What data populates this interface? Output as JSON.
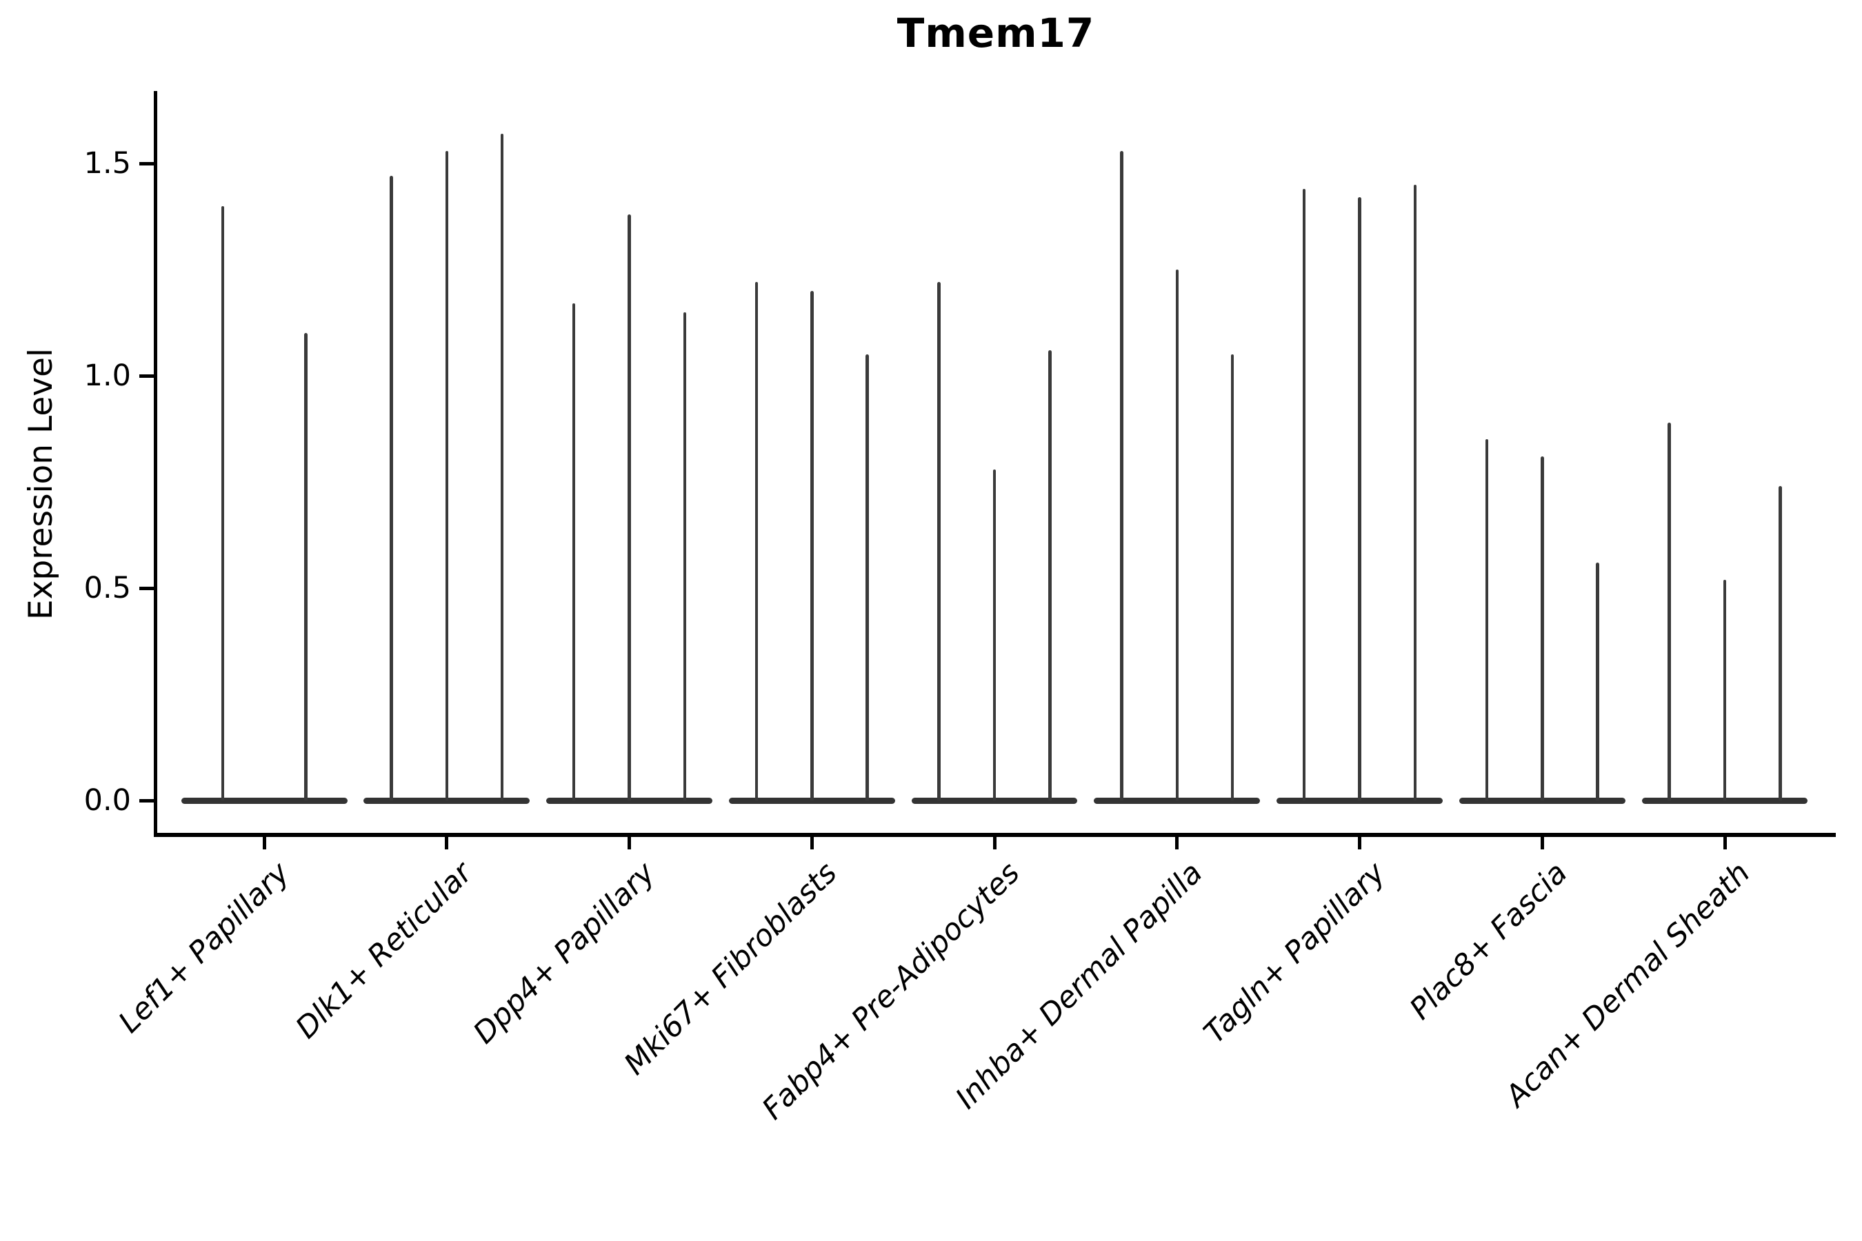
{
  "chart_data": {
    "type": "violin",
    "title": "Tmem17",
    "ylabel": "Expression Level",
    "xlabel": "",
    "yticks": [
      "0.0",
      "0.5",
      "1.0",
      "1.5"
    ],
    "ytick_values": [
      0.0,
      0.5,
      1.0,
      1.5
    ],
    "ylim": [
      -0.08,
      1.66
    ],
    "grid": "off",
    "legend": "none",
    "violin_color": "#3a3a3a",
    "axis_color": "#000000",
    "categories": [
      "Lef1+ Papillary",
      "Dlk1+ Reticular",
      "Dpp4+ Papillary",
      "Mki67+ Fibroblasts",
      "Fabp4+ Pre-Adipocytes",
      "Inhba+ Dermal Papilla",
      "Tagln+ Papillary",
      "Plac8+ Fascia",
      "Acan+ Dermal Sheath"
    ],
    "series_note": "each category holds 2-3 dodged needle violins; values are the expression maxima (spike tops), bulk of density sits at 0",
    "violin_maxima": [
      [
        1.4,
        1.1
      ],
      [
        1.47,
        1.53,
        1.57
      ],
      [
        1.17,
        1.38,
        1.15
      ],
      [
        1.22,
        1.2,
        1.05
      ],
      [
        1.22,
        0.78,
        1.06
      ],
      [
        1.53,
        1.25,
        1.05
      ],
      [
        1.44,
        1.42,
        1.45
      ],
      [
        0.85,
        0.81,
        0.56
      ],
      [
        0.89,
        0.52,
        0.74
      ]
    ]
  }
}
